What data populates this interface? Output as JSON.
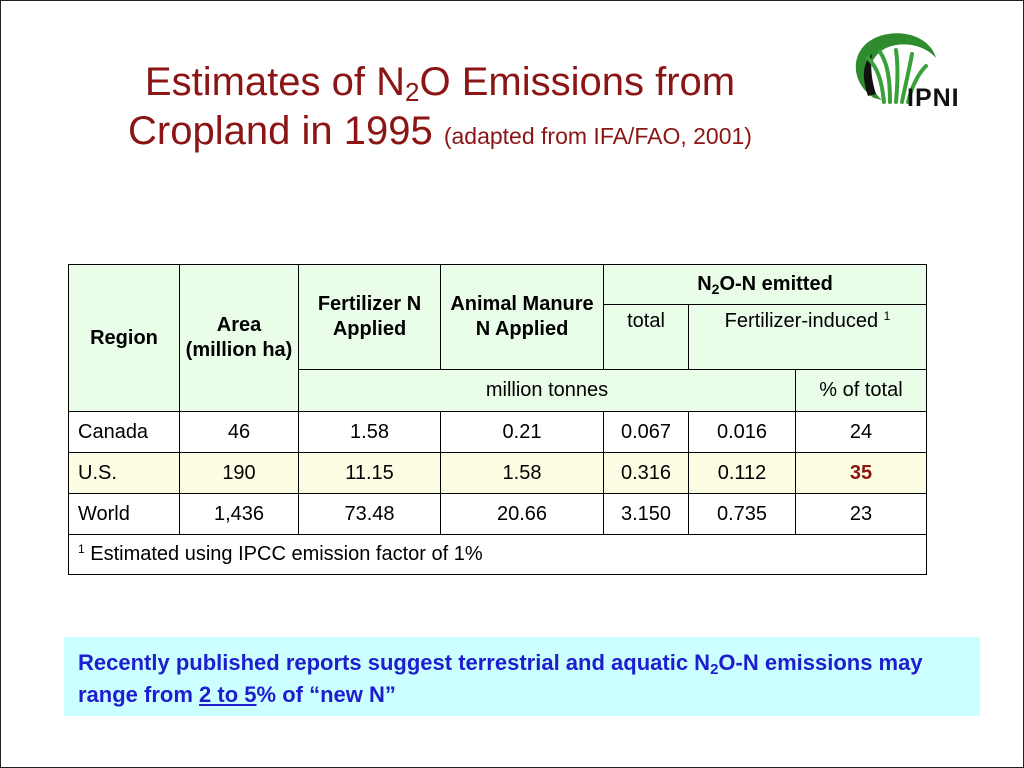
{
  "title": {
    "line1_pre": "Estimates of N",
    "line1_sub": "2",
    "line1_post": "O Emissions from",
    "line2": "Cropland in 1995",
    "note": "(adapted from IFA/FAO, 2001)"
  },
  "logo": {
    "text": "IPNI"
  },
  "table": {
    "headers": {
      "region": "Region",
      "area": "Area (million ha)",
      "fertilizer": "Fertilizer N Applied",
      "manure": "Animal Manure N Applied",
      "emitted_pre": "N",
      "emitted_sub": "2",
      "emitted_post": "O-N emitted",
      "total": "total",
      "fert_induced": "Fertilizer-induced",
      "fert_induced_sup": "1",
      "units_million": "million tonnes",
      "units_percent": "% of total"
    },
    "rows": [
      {
        "region": "Canada",
        "area": "46",
        "fertilizer": "1.58",
        "manure": "0.21",
        "total": "0.067",
        "fert_induced": "0.016",
        "percent": "24"
      },
      {
        "region": "U.S.",
        "area": "190",
        "fertilizer": "11.15",
        "manure": "1.58",
        "total": "0.316",
        "fert_induced": "0.112",
        "percent": "35"
      },
      {
        "region": "World",
        "area": "1,436",
        "fertilizer": "73.48",
        "manure": "20.66",
        "total": "3.150",
        "fert_induced": "0.735",
        "percent": "23"
      }
    ],
    "footnote_sup": "1",
    "footnote": "Estimated using IPCC emission factor of 1%"
  },
  "callout": {
    "pre": "Recently published reports suggest terrestrial and aquatic N",
    "sub": "2",
    "post": "O-N emissions may range from",
    "underlined": "2 to 5",
    "end": "% of “new N”"
  },
  "colors": {
    "title": "#8b1414",
    "callout_text": "#1e1ecf",
    "callout_bg": "#ccffff",
    "header_bg": "#e9fde9",
    "highlight_row_bg": "#fdfde4"
  }
}
